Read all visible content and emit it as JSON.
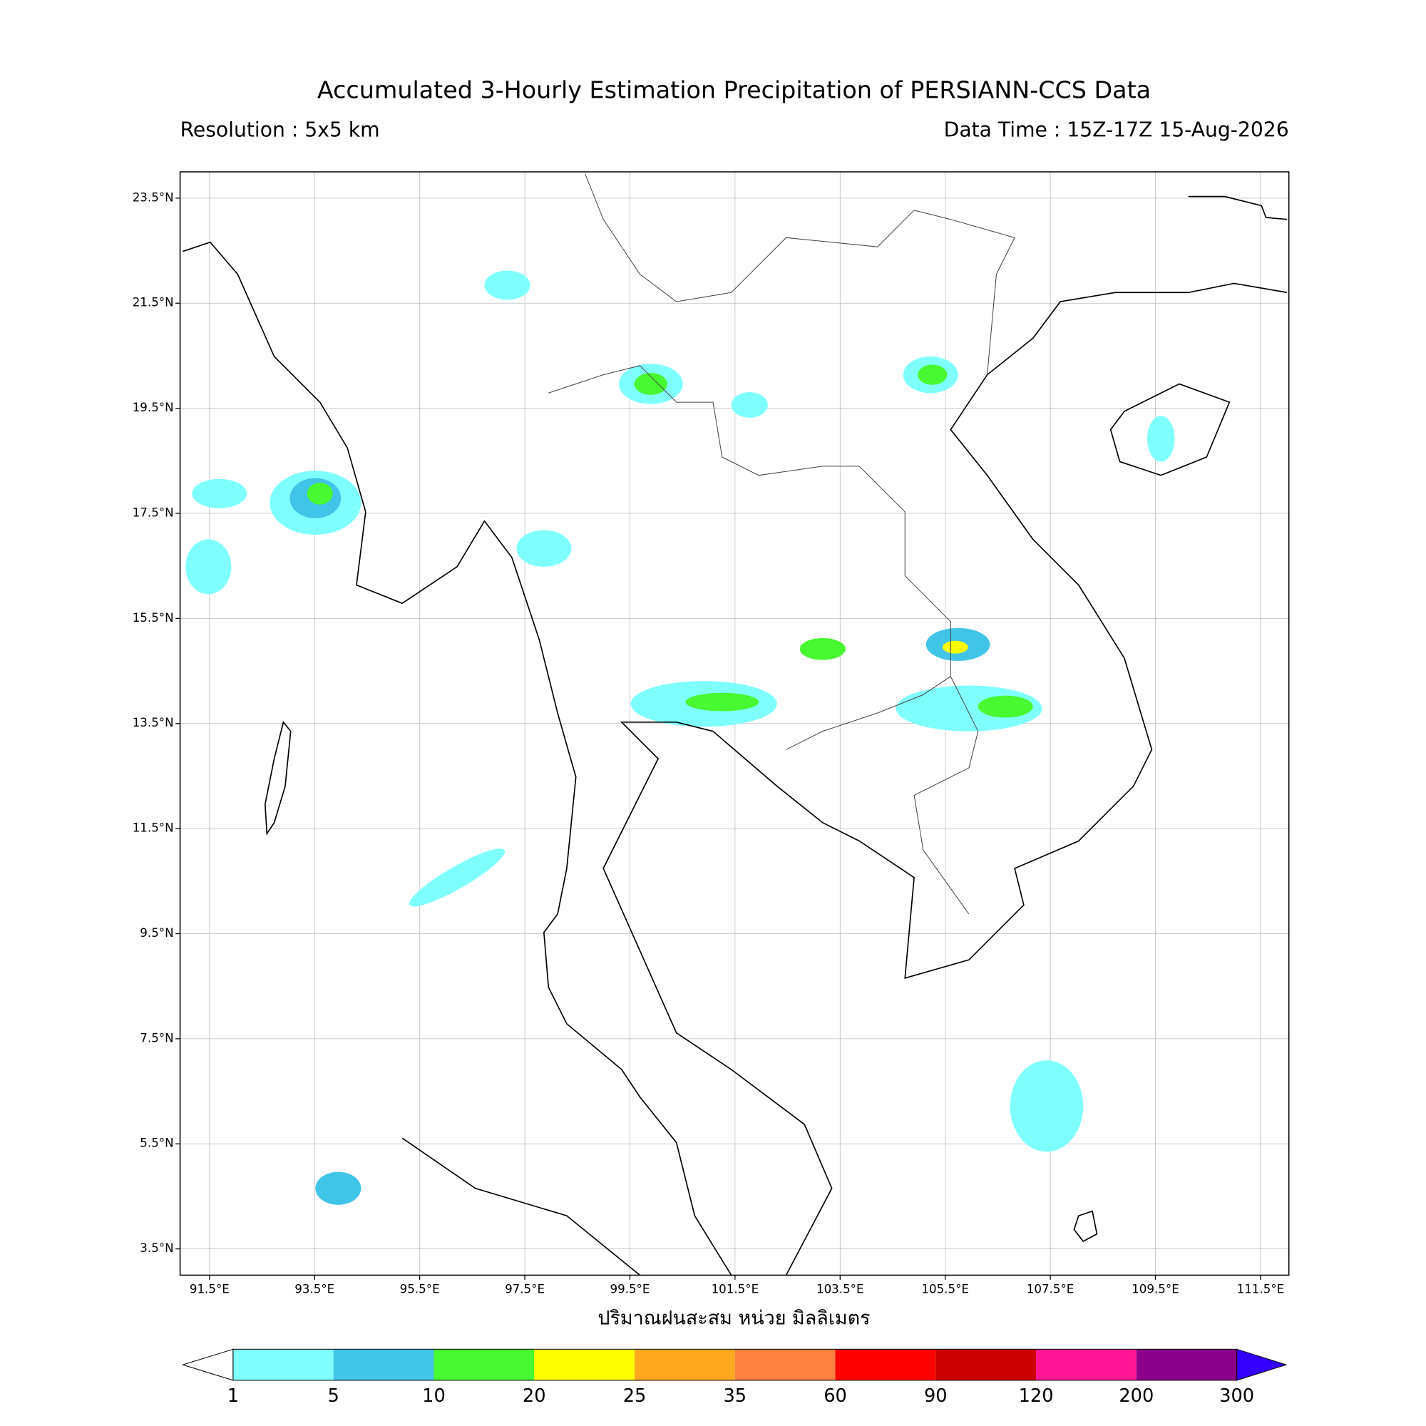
{
  "title": "Accumulated 3-Hourly Estimation Precipitation of PERSIANN-CCS Data",
  "resolution": "Resolution : 5x5 km",
  "data_time": "Data Time : 15Z-17Z 15-Aug-2026",
  "map": {
    "lonlim": [
      90.94,
      112.04
    ],
    "latlim": [
      3.0,
      24.0
    ],
    "grid": true,
    "lonticks": [
      {
        "value": 91.5,
        "label": "91.5°E"
      },
      {
        "value": 93.5,
        "label": "93.5°E"
      },
      {
        "value": 95.5,
        "label": "95.5°E"
      },
      {
        "value": 97.5,
        "label": "97.5°E"
      },
      {
        "value": 99.5,
        "label": "99.5°E"
      },
      {
        "value": 101.5,
        "label": "101.5°E"
      },
      {
        "value": 103.5,
        "label": "103.5°E"
      },
      {
        "value": 105.5,
        "label": "105.5°E"
      },
      {
        "value": 107.5,
        "label": "107.5°E"
      },
      {
        "value": 109.5,
        "label": "109.5°E"
      },
      {
        "value": 111.5,
        "label": "111.5°E"
      }
    ],
    "latticks": [
      {
        "value": 23.5,
        "label": "23.5°N"
      },
      {
        "value": 21.5,
        "label": "21.5°N"
      },
      {
        "value": 19.5,
        "label": "19.5°N"
      },
      {
        "value": 17.5,
        "label": "17.5°N"
      },
      {
        "value": 15.5,
        "label": "15.5°N"
      },
      {
        "value": 13.5,
        "label": "13.5°N"
      },
      {
        "value": 11.5,
        "label": "11.5°N"
      },
      {
        "value": 9.5,
        "label": "9.5°N"
      },
      {
        "value": 7.5,
        "label": "7.5°N"
      },
      {
        "value": 5.5,
        "label": "5.5°N"
      },
      {
        "value": 3.5,
        "label": "3.5°N"
      }
    ],
    "xlabel": "ปริมาณฝนสะสม หน่วย มิลลิเมตร"
  },
  "colorbar": {
    "levels": [
      1,
      5,
      10,
      20,
      25,
      35,
      60,
      90,
      120,
      200,
      300
    ],
    "colors": [
      "#80ffff",
      "#40c4e8",
      "#48f830",
      "#ffff00",
      "#ffa820",
      "#ff8040",
      "#ff0000",
      "#cc0000",
      "#ff1493",
      "#8b008b"
    ],
    "under_color": "#ffffff",
    "over_color": "#3300ff"
  }
}
